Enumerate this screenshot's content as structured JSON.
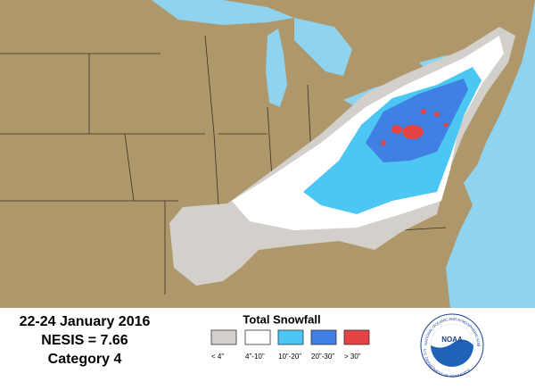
{
  "header": {
    "dates": "22-24 January 2016",
    "nesis": "NESIS = 7.66",
    "category": "Category 4"
  },
  "legend": {
    "title": "Total Snowfall",
    "items": [
      {
        "label": "< 4\"",
        "color": "#d3d0cb"
      },
      {
        "label": "4\"-10\"",
        "color": "#ffffff"
      },
      {
        "label": "10\"-20\"",
        "color": "#4cc6f2"
      },
      {
        "label": "20\"-30\"",
        "color": "#3f80e2"
      },
      {
        "label": "> 30\"",
        "color": "#e54444"
      }
    ]
  },
  "logo": {
    "name": "NOAA",
    "ring_top": "NATIONAL OCEANIC AND ATMOSPHERIC ADMINISTRATION",
    "ring_bottom": "U.S. DEPARTMENT OF COMMERCE"
  }
}
